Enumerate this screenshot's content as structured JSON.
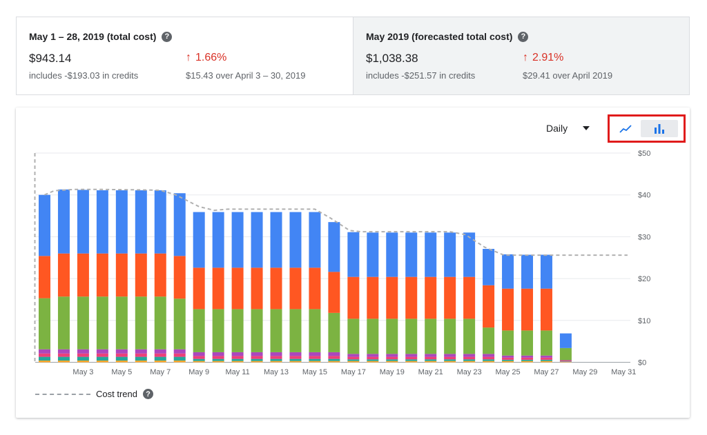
{
  "summary": {
    "current": {
      "title": "May 1 – 28, 2019 (total cost)",
      "amount": "$943.14",
      "credits": "includes -$193.03 in credits",
      "delta": "1.66%",
      "compare": "$15.43 over April 3 – 30, 2019"
    },
    "forecast": {
      "title": "May 2019 (forecasted total cost)",
      "amount": "$1,038.38",
      "credits": "includes -$251.57 in credits",
      "delta": "2.91%",
      "compare": "$29.41 over April 2019"
    }
  },
  "controls": {
    "period": "Daily",
    "active_view": "bar"
  },
  "colors": {
    "blue": "#4285f4",
    "orange": "#ff5722",
    "green": "#7cb342",
    "purple": "#ab47bc",
    "pink": "#ec407a",
    "teal": "#26a69a",
    "amber": "#ffa726",
    "trend": "#b0b0b0",
    "delta_up": "#d93025",
    "highlight": "#e01b1b"
  },
  "chart_data": {
    "type": "bar",
    "stacked": true,
    "days": [
      1,
      2,
      3,
      4,
      5,
      6,
      7,
      8,
      9,
      10,
      11,
      12,
      13,
      14,
      15,
      16,
      17,
      18,
      19,
      20,
      21,
      22,
      23,
      24,
      25,
      26,
      27,
      28,
      29,
      30,
      31
    ],
    "x_ticks": [
      "May 3",
      "May 5",
      "May 7",
      "May 9",
      "May 11",
      "May 13",
      "May 15",
      "May 17",
      "May 19",
      "May 21",
      "May 23",
      "May 25",
      "May 27",
      "May 29",
      "May 31"
    ],
    "x_tick_days": [
      3,
      5,
      7,
      9,
      11,
      13,
      15,
      17,
      19,
      21,
      23,
      25,
      27,
      29,
      31
    ],
    "y_ticks": [
      "$0",
      "$10",
      "$20",
      "$30",
      "$40",
      "$50"
    ],
    "ylim": [
      0,
      50
    ],
    "series": [
      {
        "color_key": "amber",
        "values": [
          0.4,
          0.4,
          0.4,
          0.4,
          0.4,
          0.4,
          0.4,
          0.4,
          0.3,
          0.3,
          0.3,
          0.3,
          0.3,
          0.3,
          0.3,
          0.3,
          0.3,
          0.3,
          0.3,
          0.3,
          0.3,
          0.3,
          0.3,
          0.3,
          0.3,
          0.3,
          0.3,
          0.1
        ]
      },
      {
        "color_key": "teal",
        "values": [
          0.9,
          0.9,
          0.9,
          0.9,
          0.9,
          0.9,
          0.9,
          0.9,
          0.5,
          0.5,
          0.5,
          0.5,
          0.5,
          0.5,
          0.5,
          0.5,
          0.4,
          0.4,
          0.4,
          0.4,
          0.4,
          0.4,
          0.4,
          0.4,
          0.3,
          0.3,
          0.3,
          0.1
        ]
      },
      {
        "color_key": "pink",
        "values": [
          0.8,
          0.8,
          0.8,
          0.8,
          0.8,
          0.8,
          0.8,
          0.8,
          0.7,
          0.7,
          0.7,
          0.7,
          0.7,
          0.7,
          0.7,
          0.7,
          0.6,
          0.6,
          0.6,
          0.6,
          0.6,
          0.6,
          0.6,
          0.6,
          0.5,
          0.5,
          0.5,
          0.2
        ]
      },
      {
        "color_key": "purple",
        "values": [
          1.0,
          1.0,
          1.0,
          1.0,
          1.0,
          1.0,
          1.0,
          1.0,
          0.9,
          0.9,
          0.9,
          0.9,
          0.9,
          0.9,
          0.9,
          0.9,
          0.7,
          0.7,
          0.7,
          0.7,
          0.7,
          0.7,
          0.7,
          0.7,
          0.5,
          0.5,
          0.5,
          0.1
        ]
      },
      {
        "color_key": "green",
        "values": [
          12.2,
          12.6,
          12.6,
          12.6,
          12.6,
          12.6,
          12.6,
          12.1,
          10.3,
          10.3,
          10.3,
          10.3,
          10.3,
          10.3,
          10.3,
          9.4,
          8.4,
          8.4,
          8.4,
          8.4,
          8.4,
          8.4,
          8.4,
          6.3,
          6.0,
          6.0,
          6.0,
          2.9
        ]
      },
      {
        "color_key": "orange",
        "values": [
          10.1,
          10.3,
          10.3,
          10.3,
          10.3,
          10.3,
          10.3,
          10.2,
          9.9,
          9.9,
          9.9,
          9.9,
          9.9,
          9.9,
          9.9,
          9.8,
          10.0,
          10.0,
          10.0,
          10.0,
          10.0,
          10.0,
          10.0,
          10.1,
          10.0,
          10.0,
          10.0,
          0
        ]
      },
      {
        "color_key": "blue",
        "values": [
          14.6,
          15.3,
          15.2,
          15.1,
          15.1,
          15.1,
          15.1,
          15.0,
          13.3,
          13.3,
          13.3,
          13.3,
          13.3,
          13.3,
          13.3,
          11.9,
          10.7,
          10.6,
          10.6,
          10.6,
          10.6,
          10.6,
          10.6,
          8.7,
          8.2,
          8.1,
          8.1,
          3.5
        ]
      }
    ],
    "trend": {
      "label": "Cost trend",
      "days": [
        1,
        1.5,
        2.5,
        4,
        6,
        7,
        7.8,
        9,
        9.8,
        10.5,
        15,
        15.8,
        16.8,
        17.4,
        22,
        22.8,
        23.8,
        24.8,
        31.2
      ],
      "values": [
        40,
        41,
        41.3,
        41.3,
        41.2,
        41.1,
        40,
        37.2,
        36.3,
        36.6,
        36.6,
        34.5,
        31.5,
        31.2,
        31.2,
        30.5,
        27.5,
        25.6,
        25.6
      ]
    }
  }
}
